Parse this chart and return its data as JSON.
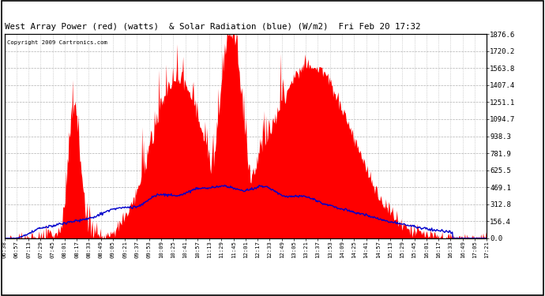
{
  "title": "West Array Power (red) (watts)  & Solar Radiation (blue) (W/m2)  Fri Feb 20 17:32",
  "copyright": "Copyright 2009 Cartronics.com",
  "y_max": 1876.6,
  "y_min": 0.0,
  "y_ticks": [
    0.0,
    156.4,
    312.8,
    469.1,
    625.5,
    781.9,
    938.3,
    1094.7,
    1251.1,
    1407.4,
    1563.8,
    1720.2,
    1876.6
  ],
  "background_color": "#ffffff",
  "plot_bg_color": "#ffffff",
  "grid_color": "#b0b0b0",
  "red_color": "#ff0000",
  "blue_color": "#0000cc",
  "x_labels": [
    "06:38",
    "06:57",
    "07:13",
    "07:29",
    "07:45",
    "08:01",
    "08:17",
    "08:33",
    "08:49",
    "09:05",
    "09:21",
    "09:37",
    "09:53",
    "10:09",
    "10:25",
    "10:41",
    "10:57",
    "11:13",
    "11:29",
    "11:45",
    "12:01",
    "12:17",
    "12:33",
    "12:49",
    "13:05",
    "13:21",
    "13:37",
    "13:53",
    "14:09",
    "14:25",
    "14:41",
    "14:57",
    "15:13",
    "15:29",
    "15:45",
    "16:01",
    "16:17",
    "16:33",
    "16:49",
    "17:05",
    "17:21"
  ]
}
